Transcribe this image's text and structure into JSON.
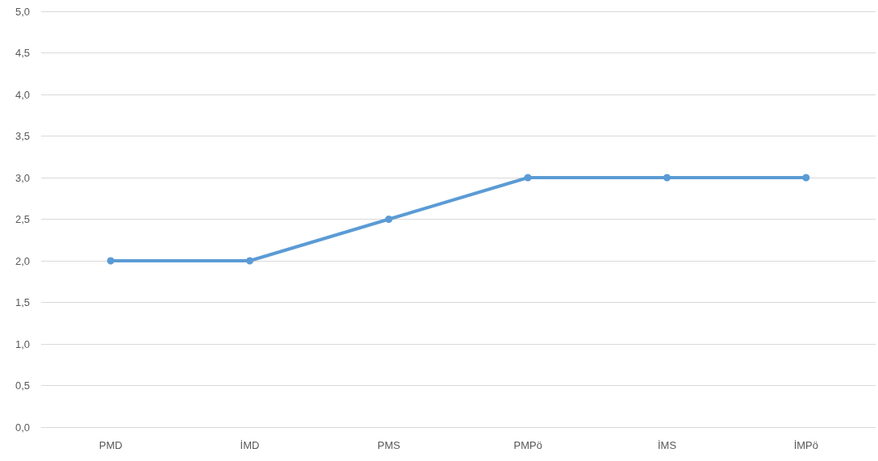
{
  "chart_data": {
    "type": "line",
    "categories": [
      "PMD",
      "İMD",
      "PMS",
      "PMPö",
      "İMS",
      "İMPö"
    ],
    "series": [
      {
        "color": "#5b9bd5",
        "values": [
          2,
          2,
          2.5,
          3,
          3,
          3
        ]
      }
    ],
    "ylim": [
      0,
      5
    ],
    "yticks": [
      {
        "value": 0,
        "label": "0,0"
      },
      {
        "value": 0.5,
        "label": "0,5"
      },
      {
        "value": 1,
        "label": "1,0"
      },
      {
        "value": 1.5,
        "label": "1,5"
      },
      {
        "value": 2,
        "label": "2,0"
      },
      {
        "value": 2.5,
        "label": "2,5"
      },
      {
        "value": 3,
        "label": "3,0"
      },
      {
        "value": 3.5,
        "label": "3,5"
      },
      {
        "value": 4,
        "label": "4,0"
      },
      {
        "value": 4.5,
        "label": "4,5"
      },
      {
        "value": 5,
        "label": "5,0"
      }
    ],
    "grid": "y",
    "marker": "circle",
    "line_style": "solid"
  }
}
